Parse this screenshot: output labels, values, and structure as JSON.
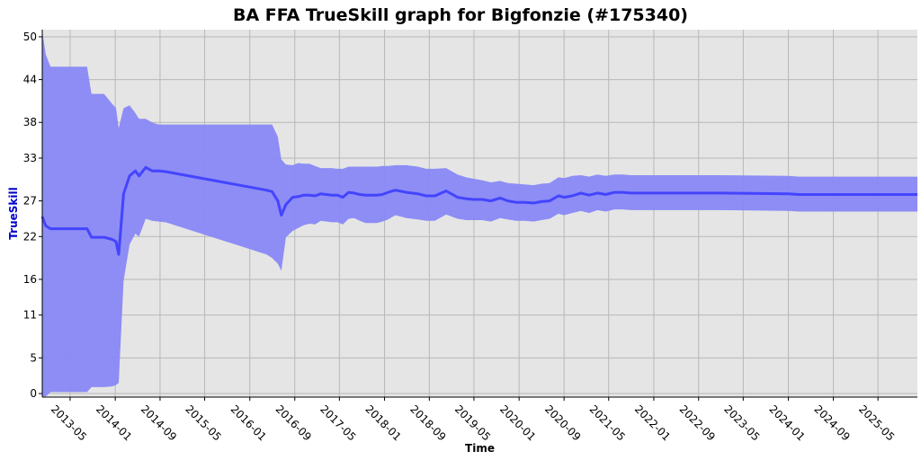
{
  "chart_data": {
    "type": "line",
    "title": "BA FFA TrueSkill graph for Bigfonzie (#175340)",
    "xlabel": "Time",
    "ylabel": "TrueSkill",
    "ylim": [
      -0.5,
      51
    ],
    "xlim": [
      "2012-12-01",
      "2025-12-01"
    ],
    "y_ticks": [
      0,
      5,
      11,
      16,
      22,
      27,
      33,
      38,
      44,
      50
    ],
    "x_ticks": [
      "2013-05",
      "2014-01",
      "2014-09",
      "2015-05",
      "2016-01",
      "2016-09",
      "2017-05",
      "2018-01",
      "2018-09",
      "2019-05",
      "2020-01",
      "2020-09",
      "2021-05",
      "2022-01",
      "2022-09",
      "2023-05",
      "2024-01",
      "2024-09",
      "2025-05"
    ],
    "grid": true,
    "colors": {
      "line": "#4444ff",
      "band": "#8888f5",
      "plot_bg": "#e5e5e5",
      "grid": "#b8b8b8"
    },
    "series": [
      {
        "x": [
          "2012-12-01",
          "2012-12-20",
          "2013-01-15",
          "2013-08-01",
          "2013-08-25",
          "2013-11-01",
          "2013-12-15",
          "2014-01-05",
          "2014-01-20",
          "2014-02-15",
          "2014-03-20",
          "2014-04-20",
          "2014-05-10",
          "2014-06-15",
          "2014-07-20",
          "2014-08-25",
          "2014-10-01",
          "2016-04-01",
          "2016-05-01",
          "2016-06-01",
          "2016-06-20",
          "2016-07-15",
          "2016-08-20",
          "2016-09-20",
          "2016-10-20",
          "2016-11-20",
          "2016-12-20",
          "2017-01-20",
          "2017-02-20",
          "2017-03-20",
          "2017-04-20",
          "2017-05-20",
          "2017-06-20",
          "2017-07-20",
          "2017-08-20",
          "2017-09-20",
          "2017-10-20",
          "2017-11-20",
          "2017-12-20",
          "2018-01-20",
          "2018-03-01",
          "2018-05-01",
          "2018-07-01",
          "2018-08-15",
          "2018-10-01",
          "2018-12-01",
          "2019-02-01",
          "2019-03-20",
          "2019-05-01",
          "2019-06-15",
          "2019-08-01",
          "2019-09-20",
          "2019-11-01",
          "2019-12-15",
          "2020-02-01",
          "2020-03-20",
          "2020-05-01",
          "2020-06-15",
          "2020-08-01",
          "2020-09-01",
          "2020-10-15",
          "2020-12-01",
          "2021-01-15",
          "2021-03-01",
          "2021-04-15",
          "2021-06-01",
          "2021-07-15",
          "2021-09-01",
          "2023-01-01",
          "2024-01-01",
          "2024-03-01",
          "2025-12-01"
        ],
        "y": [
          24.8,
          23.5,
          23.1,
          23.1,
          21.9,
          21.9,
          21.6,
          21.3,
          19.5,
          28.0,
          30.5,
          31.2,
          30.5,
          31.7,
          31.2,
          31.2,
          31.1,
          28.5,
          28.3,
          27.0,
          25.0,
          26.5,
          27.5,
          27.6,
          27.8,
          27.8,
          27.7,
          28.0,
          27.9,
          27.8,
          27.8,
          27.5,
          28.2,
          28.1,
          27.9,
          27.8,
          27.8,
          27.8,
          27.9,
          28.2,
          28.5,
          28.2,
          28.0,
          27.7,
          27.7,
          28.4,
          27.5,
          27.3,
          27.2,
          27.2,
          27.0,
          27.4,
          27.0,
          26.8,
          26.8,
          26.7,
          26.9,
          27.0,
          27.7,
          27.5,
          27.7,
          28.1,
          27.8,
          28.1,
          27.9,
          28.2,
          28.2,
          28.1,
          28.1,
          28.0,
          27.9,
          27.9
        ],
        "upper": [
          50.8,
          47.5,
          45.8,
          45.8,
          42.0,
          42.0,
          40.6,
          40.0,
          37.2,
          40.0,
          40.4,
          39.3,
          38.5,
          38.5,
          38.0,
          37.7,
          37.7,
          37.7,
          37.7,
          36.0,
          32.8,
          32.1,
          32.0,
          32.3,
          32.2,
          32.2,
          31.9,
          31.6,
          31.6,
          31.6,
          31.5,
          31.5,
          31.8,
          31.8,
          31.8,
          31.8,
          31.8,
          31.8,
          31.9,
          31.9,
          32.0,
          32.0,
          31.8,
          31.5,
          31.5,
          31.6,
          30.7,
          30.3,
          30.1,
          29.9,
          29.6,
          29.8,
          29.5,
          29.4,
          29.3,
          29.2,
          29.4,
          29.5,
          30.3,
          30.2,
          30.5,
          30.6,
          30.4,
          30.7,
          30.5,
          30.7,
          30.7,
          30.6,
          30.6,
          30.5,
          30.4,
          30.4
        ],
        "lower": [
          -0.4,
          -0.4,
          0.2,
          0.2,
          0.9,
          0.9,
          1.0,
          1.2,
          1.5,
          15.8,
          20.9,
          22.4,
          22.0,
          24.5,
          24.2,
          24.1,
          24.0,
          19.5,
          19.0,
          18.2,
          17.2,
          21.9,
          22.8,
          23.2,
          23.6,
          23.8,
          23.7,
          24.2,
          24.1,
          24.0,
          24.0,
          23.7,
          24.5,
          24.6,
          24.2,
          23.9,
          23.9,
          23.9,
          24.1,
          24.4,
          25.0,
          24.6,
          24.4,
          24.2,
          24.2,
          25.1,
          24.5,
          24.3,
          24.3,
          24.3,
          24.1,
          24.6,
          24.4,
          24.2,
          24.2,
          24.1,
          24.3,
          24.5,
          25.2,
          25.0,
          25.3,
          25.6,
          25.3,
          25.7,
          25.5,
          25.8,
          25.8,
          25.7,
          25.7,
          25.6,
          25.5,
          25.5
        ]
      }
    ]
  }
}
